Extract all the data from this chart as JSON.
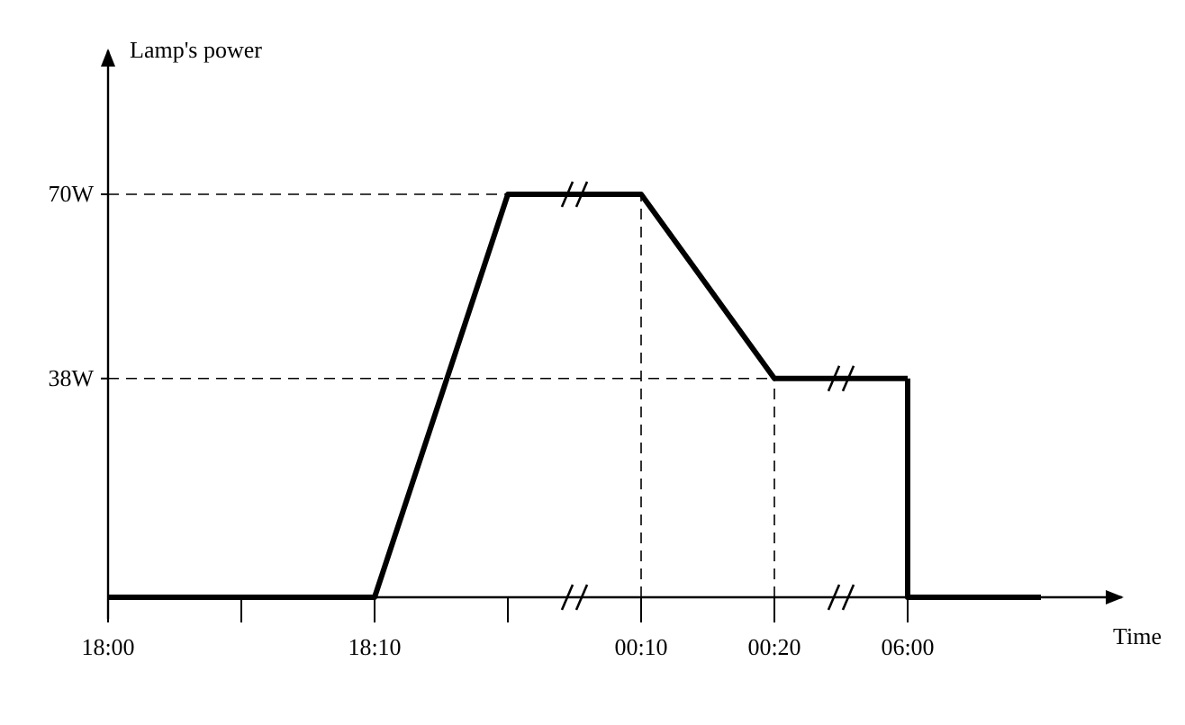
{
  "chart_data": {
    "type": "line",
    "xlabel": "Time",
    "ylabel": "Lamp's power",
    "categories": [
      "18:00",
      null,
      "18:10",
      null,
      "00:10",
      "00:20",
      "06:00",
      null
    ],
    "series": [
      {
        "color": "#000000",
        "values": [
          0,
          0,
          0,
          70,
          70,
          38,
          38,
          null
        ]
      },
      {
        "type": "step",
        "color": "#000000",
        "values": [
          null,
          null,
          null,
          null,
          null,
          null,
          38,
          0
        ]
      }
    ],
    "ylim": [
      0,
      95
    ],
    "yticks": [
      {
        "value": 38,
        "label": "38W"
      },
      {
        "value": 70,
        "label": "70W"
      }
    ],
    "ref_lines": [
      {
        "axis": "y",
        "value": 70,
        "line_style": "dashed"
      },
      {
        "axis": "y",
        "value": 38,
        "line_style": "dashed"
      },
      {
        "axis": "x",
        "value": "00:10",
        "line_style": "dashed"
      },
      {
        "axis": "x",
        "value": "00:20",
        "line_style": "dashed"
      }
    ],
    "grid": false,
    "marker": "none",
    "line_style": "solid"
  }
}
